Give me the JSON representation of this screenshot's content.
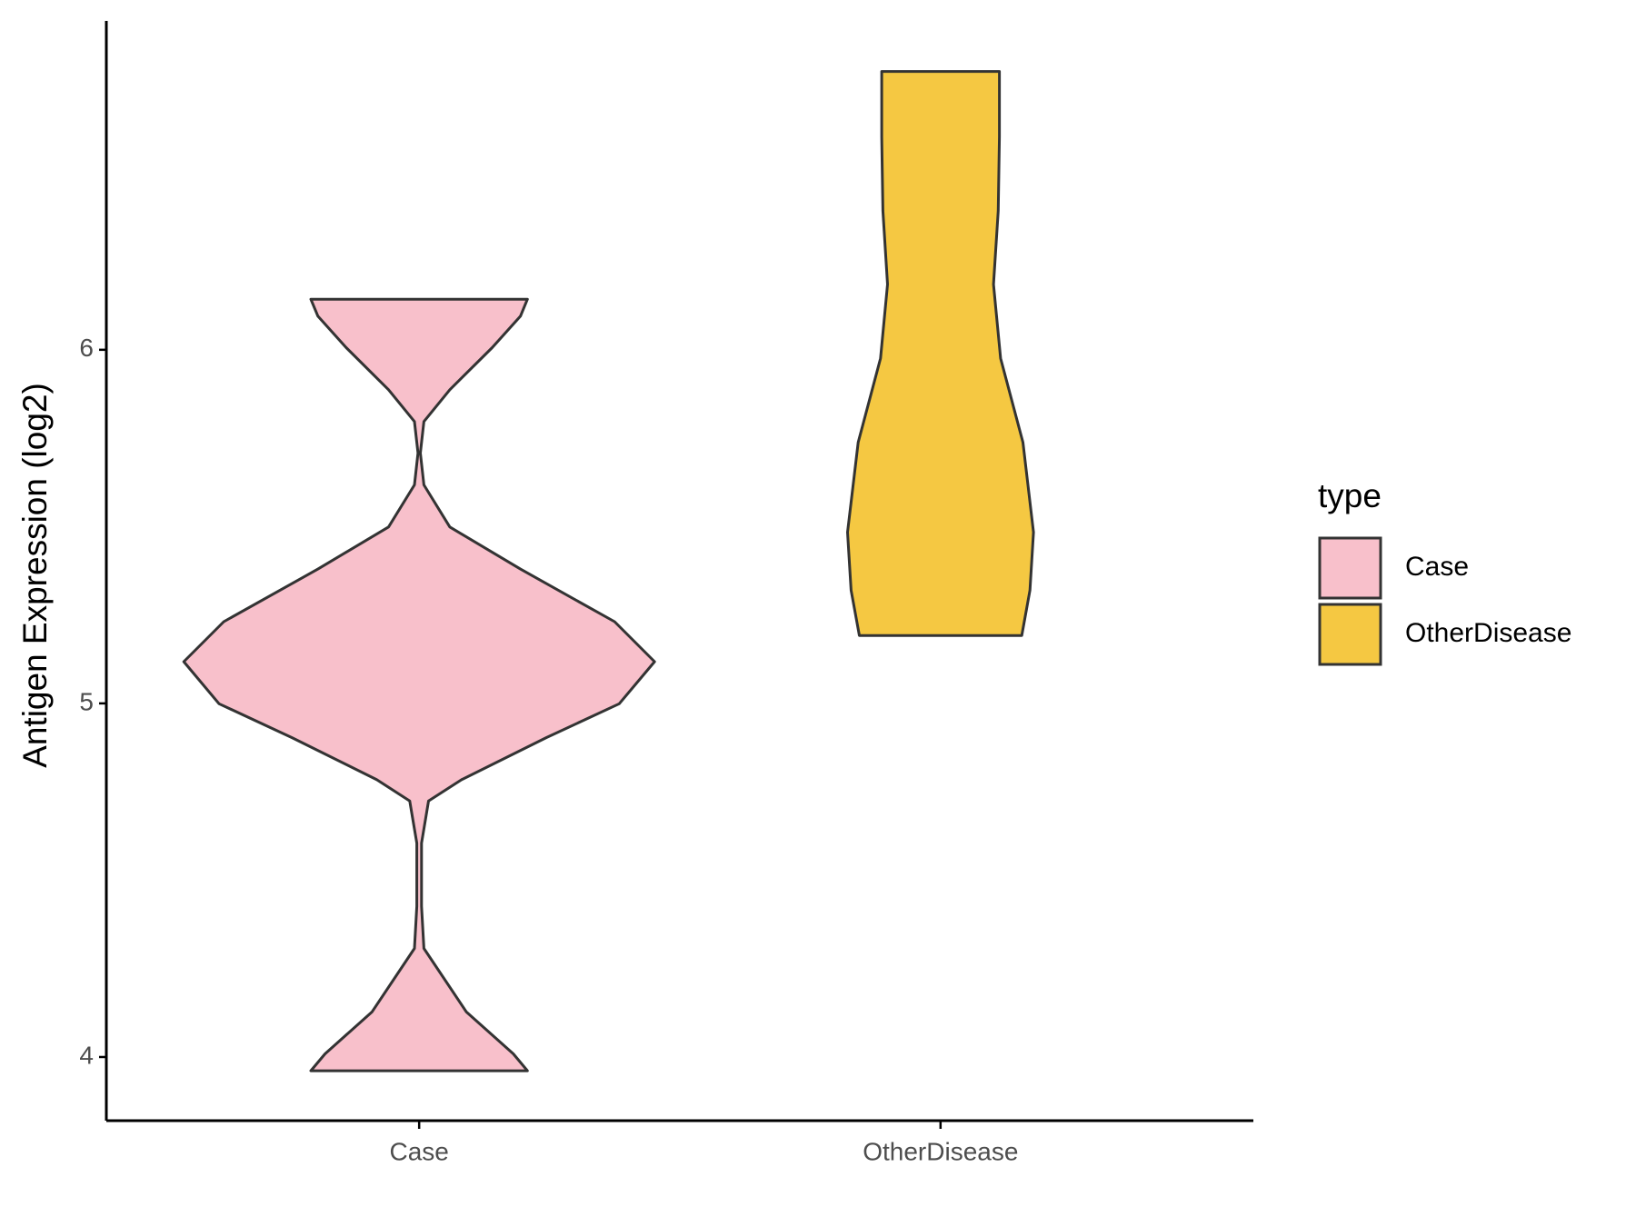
{
  "chart_data": {
    "type": "violin",
    "y_label": "Antigen Expression (log2)",
    "categories": [
      "Case",
      "OtherDisease"
    ],
    "legend_title": "type",
    "legend": "right",
    "ylim": [
      3.82,
      6.93
    ],
    "yticks": [
      4,
      5,
      6
    ],
    "series": [
      {
        "name": "Case",
        "color": "#f8c0cb",
        "y": [
          3.961,
          4.009,
          4.128,
          4.307,
          4.426,
          4.605,
          4.724,
          4.784,
          4.903,
          4.999,
          5.118,
          5.231,
          5.38,
          5.499,
          5.618,
          5.708,
          5.797,
          5.887,
          6.006,
          6.095,
          6.143
        ],
        "width": [
          0.46,
          0.4,
          0.2,
          0.02,
          0.01,
          0.01,
          0.04,
          0.18,
          0.54,
          0.85,
          1,
          0.83,
          0.43,
          0.13,
          0.02,
          0.005,
          0.02,
          0.13,
          0.31,
          0.43,
          0.46
        ]
      },
      {
        "name": "OtherDisease",
        "color": "#f5c842",
        "y": [
          5.192,
          5.32,
          5.484,
          5.738,
          5.976,
          6.185,
          6.393,
          6.602,
          6.787
        ],
        "width": [
          0.345,
          0.38,
          0.395,
          0.35,
          0.255,
          0.225,
          0.245,
          0.25,
          0.25
        ]
      }
    ]
  }
}
